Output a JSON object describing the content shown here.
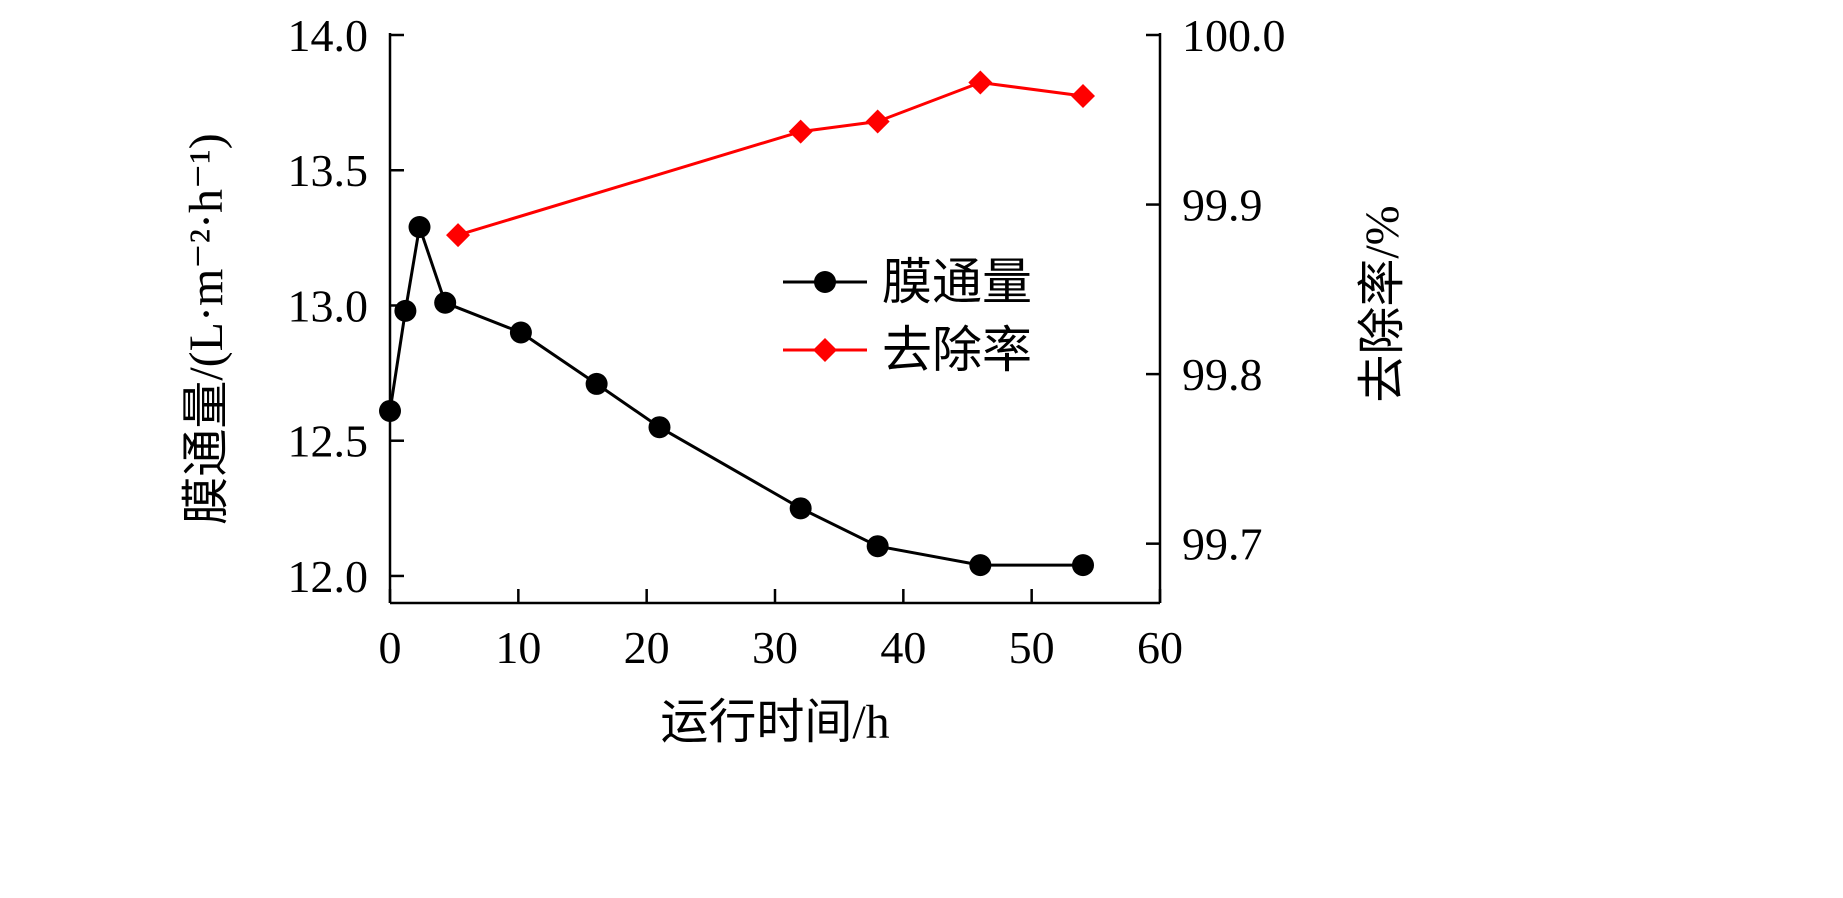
{
  "chart_data": {
    "type": "line",
    "x_axis": {
      "label": "运行时间/h",
      "range": [
        0,
        60
      ],
      "ticks": [
        0,
        10,
        20,
        30,
        40,
        50,
        60
      ]
    },
    "y_left": {
      "label": "膜通量/(L·m⁻²·h⁻¹)",
      "range": [
        11.9,
        14.0
      ],
      "ticks": [
        "12.0",
        "12.5",
        "13.0",
        "13.5",
        "14.0"
      ]
    },
    "y_right": {
      "label": "去除率/%",
      "range": [
        99.665,
        100.0
      ],
      "ticks": [
        "99.7",
        "99.8",
        "99.9",
        "100.0"
      ]
    },
    "series": [
      {
        "name": "膜通量",
        "axis": "left",
        "color": "#000000",
        "marker": "circle",
        "x": [
          0,
          1.2,
          2.3,
          4.3,
          10.2,
          16.1,
          21,
          32,
          38,
          46,
          54
        ],
        "y": [
          12.61,
          12.98,
          13.29,
          13.01,
          12.9,
          12.71,
          12.55,
          12.25,
          12.11,
          12.04,
          12.04
        ]
      },
      {
        "name": "去除率",
        "axis": "right",
        "color": "#ff0000",
        "marker": "diamond",
        "x": [
          5.3,
          32,
          38,
          46,
          54
        ],
        "y": [
          99.882,
          99.943,
          99.949,
          99.972,
          99.964
        ]
      }
    ],
    "legend": {
      "position": "center-right"
    },
    "grid": false
  }
}
